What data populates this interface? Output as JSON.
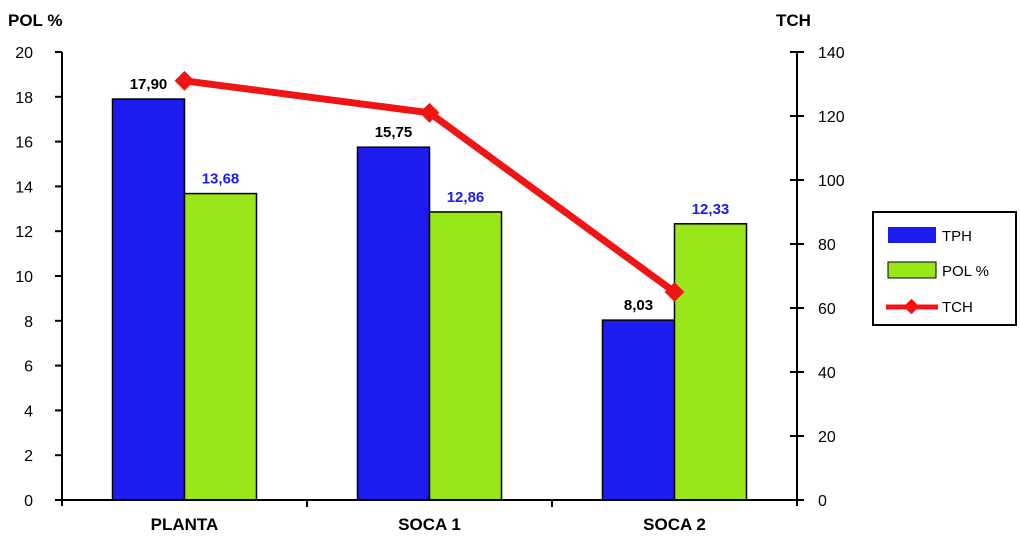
{
  "chart_data": {
    "type": "bar",
    "categories": [
      "PLANTA",
      "SOCA 1",
      "SOCA 2"
    ],
    "y_left": {
      "label": "POL %",
      "ylim": [
        0,
        20
      ],
      "ticks": [
        "0",
        "2",
        "4",
        "6",
        "8",
        "10",
        "12",
        "14",
        "16",
        "18",
        "20"
      ]
    },
    "y_right": {
      "label": "TCH",
      "ylim": [
        0,
        140
      ],
      "ticks": [
        "0",
        "20",
        "40",
        "60",
        "80",
        "100",
        "120",
        "140"
      ]
    },
    "series": [
      {
        "name": "TPH",
        "type": "bar",
        "axis": "left",
        "color": "#1c1cf0",
        "values": [
          17.9,
          15.75,
          8.03
        ],
        "labels": [
          "17,90",
          "15,75",
          "8,03"
        ]
      },
      {
        "name": "POL %",
        "type": "bar",
        "axis": "left",
        "color": "#99e619",
        "values": [
          13.68,
          12.86,
          12.33
        ],
        "labels": [
          "13,68",
          "12,86",
          "12,33"
        ]
      },
      {
        "name": "TCH",
        "type": "line",
        "axis": "right",
        "color": "#f01414",
        "values": [
          131,
          121,
          65
        ]
      }
    ],
    "legend": {
      "position": "right",
      "items": [
        "TPH",
        "POL %",
        "TCH"
      ]
    },
    "grid": false
  }
}
